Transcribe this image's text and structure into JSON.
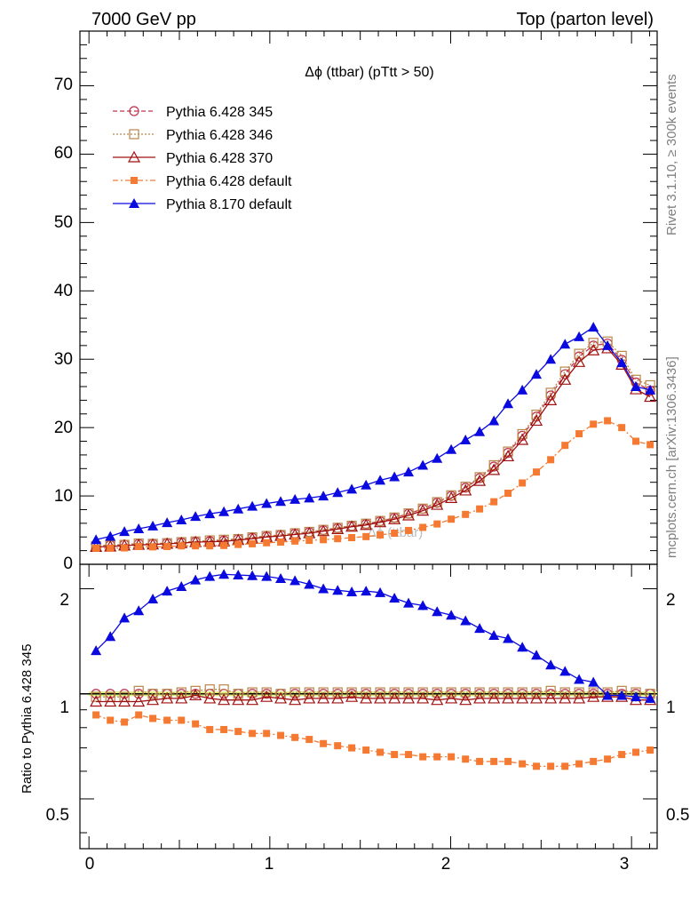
{
  "header": {
    "left": "7000 GeV pp",
    "right": "Top (parton level)"
  },
  "side_labels": {
    "rivet": "Rivet 3.1.10, ≥ 300k events",
    "mcplots": "mcplots.cern.ch [arXiv:1306.3436]"
  },
  "main_plot": {
    "title": "Δϕ (ttbar) (pTtt > 50)",
    "yticks": [
      "0",
      "10",
      "20",
      "30",
      "40",
      "50",
      "60",
      "70"
    ],
    "watermark": "Δϕ (ttbar)"
  },
  "ratio_plot": {
    "ylabel": "Ratio to Pythia 6.428 345",
    "yticks_left": [
      "0.5",
      "1",
      "2"
    ],
    "yticks_right": [
      "0.5",
      "1",
      "2"
    ]
  },
  "xticks": [
    "0",
    "1",
    "2",
    "3"
  ],
  "chart_data": {
    "type": "line",
    "title": "Δϕ (ttbar) (pTtt > 50)",
    "xlabel": "",
    "ylabel": "",
    "xlim": [
      -0.05,
      3.1416
    ],
    "ylim": [
      0,
      78
    ],
    "ratio_ylim": [
      0.36,
      2.35
    ],
    "legend_position": "top-left",
    "x": [
      0.039,
      0.118,
      0.196,
      0.275,
      0.353,
      0.432,
      0.511,
      0.589,
      0.668,
      0.746,
      0.825,
      0.903,
      0.982,
      1.06,
      1.139,
      1.218,
      1.296,
      1.375,
      1.453,
      1.532,
      1.61,
      1.689,
      1.767,
      1.846,
      1.925,
      2.003,
      2.082,
      2.16,
      2.239,
      2.317,
      2.396,
      2.474,
      2.553,
      2.632,
      2.71,
      2.789,
      2.867,
      2.946,
      3.024,
      3.103
    ],
    "series": [
      {
        "name": "Pythia 6.428 345",
        "color": "#c0304a",
        "marker": "open-circle",
        "dash": "5,3",
        "values": [
          2.7,
          2.8,
          2.9,
          3.0,
          3.0,
          3.1,
          3.2,
          3.3,
          3.4,
          3.5,
          3.7,
          3.9,
          4.1,
          4.3,
          4.5,
          4.7,
          5.0,
          5.3,
          5.6,
          5.9,
          6.3,
          6.8,
          7.4,
          8.1,
          9.0,
          10.0,
          11.2,
          12.6,
          14.3,
          16.3,
          18.8,
          21.6,
          24.7,
          27.8,
          30.4,
          32.0,
          32.3,
          29.9,
          26.6,
          25.4
        ]
      },
      {
        "name": "Pythia 6.428 346",
        "color": "#b8864b",
        "marker": "open-square",
        "dash": "2,2",
        "values": [
          2.65,
          2.75,
          2.85,
          3.05,
          3.0,
          3.1,
          3.25,
          3.35,
          3.5,
          3.6,
          3.7,
          3.95,
          4.15,
          4.3,
          4.55,
          4.75,
          5.05,
          5.35,
          5.65,
          5.95,
          6.35,
          6.85,
          7.45,
          8.15,
          9.1,
          10.1,
          11.35,
          12.75,
          14.5,
          16.5,
          19.05,
          21.9,
          25.1,
          28.2,
          30.8,
          32.4,
          32.6,
          30.5,
          27.0,
          26.2
        ]
      },
      {
        "name": "Pythia 6.428 370",
        "color": "#a01010",
        "marker": "open-triangle",
        "dash": "",
        "values": [
          2.55,
          2.6,
          2.75,
          2.85,
          2.9,
          3.0,
          3.1,
          3.25,
          3.3,
          3.35,
          3.55,
          3.75,
          4.0,
          4.15,
          4.35,
          4.55,
          4.85,
          5.15,
          5.5,
          5.75,
          6.15,
          6.6,
          7.15,
          7.85,
          8.7,
          9.7,
          10.8,
          12.2,
          13.8,
          15.8,
          18.2,
          21.0,
          24.0,
          27.0,
          29.6,
          31.3,
          31.6,
          29.2,
          25.6,
          24.5
        ]
      },
      {
        "name": "Pythia 6.428 default",
        "color": "#f47a33",
        "marker": "filled-square",
        "dash": "6,3,2,3",
        "values": [
          2.35,
          2.35,
          2.4,
          2.6,
          2.55,
          2.6,
          2.7,
          2.7,
          2.7,
          2.75,
          2.9,
          3.0,
          3.15,
          3.25,
          3.4,
          3.5,
          3.6,
          3.75,
          3.9,
          4.05,
          4.3,
          4.55,
          4.95,
          5.4,
          5.9,
          6.6,
          7.3,
          8.1,
          9.15,
          10.4,
          11.9,
          13.5,
          15.3,
          17.4,
          19.1,
          20.5,
          21.0,
          20.0,
          18.0,
          17.5
        ]
      },
      {
        "name": "Pythia 8.170 default",
        "color": "#0a0ae0",
        "marker": "filled-triangle",
        "dash": "",
        "values": [
          3.6,
          4.1,
          4.8,
          5.2,
          5.6,
          6.1,
          6.5,
          7.0,
          7.4,
          7.7,
          8.1,
          8.5,
          8.9,
          9.2,
          9.5,
          9.7,
          10.0,
          10.5,
          11.0,
          11.6,
          12.3,
          12.8,
          13.5,
          14.5,
          15.5,
          16.8,
          18.2,
          19.4,
          21.0,
          23.5,
          25.5,
          27.8,
          30.0,
          32.2,
          33.3,
          34.7,
          32.0,
          29.5,
          26.0,
          25.5
        ]
      }
    ],
    "ratio_series": [
      {
        "name": "Pythia 6.428 346",
        "values": [
          0.98,
          0.98,
          0.98,
          1.02,
          1.0,
          1.0,
          1.01,
          1.02,
          1.03,
          1.03,
          1.0,
          1.01,
          1.01,
          1.0,
          1.01,
          1.01,
          1.01,
          1.01,
          1.01,
          1.01,
          1.01,
          1.01,
          1.01,
          1.01,
          1.01,
          1.01,
          1.01,
          1.01,
          1.01,
          1.01,
          1.01,
          1.01,
          1.02,
          1.01,
          1.01,
          1.01,
          1.01,
          1.02,
          1.01,
          1.0
        ]
      },
      {
        "name": "Pythia 6.428 370",
        "values": [
          0.95,
          0.95,
          0.95,
          0.95,
          0.96,
          0.97,
          0.97,
          0.99,
          0.97,
          0.96,
          0.96,
          0.96,
          0.98,
          0.97,
          0.96,
          0.97,
          0.97,
          0.97,
          0.98,
          0.97,
          0.97,
          0.97,
          0.97,
          0.97,
          0.96,
          0.97,
          0.96,
          0.97,
          0.97,
          0.97,
          0.97,
          0.97,
          0.97,
          0.97,
          0.97,
          0.98,
          0.98,
          0.98,
          0.96,
          0.96
        ]
      },
      {
        "name": "Pythia 6.428 default",
        "values": [
          0.87,
          0.84,
          0.83,
          0.87,
          0.85,
          0.84,
          0.84,
          0.82,
          0.79,
          0.79,
          0.78,
          0.77,
          0.77,
          0.76,
          0.75,
          0.74,
          0.72,
          0.71,
          0.7,
          0.69,
          0.68,
          0.67,
          0.67,
          0.66,
          0.66,
          0.66,
          0.65,
          0.64,
          0.64,
          0.64,
          0.63,
          0.62,
          0.62,
          0.62,
          0.63,
          0.64,
          0.65,
          0.67,
          0.68,
          0.69
        ]
      },
      {
        "name": "Pythia 8.170 default",
        "values": [
          1.33,
          1.46,
          1.65,
          1.73,
          1.87,
          1.97,
          2.03,
          2.12,
          2.17,
          2.2,
          2.19,
          2.18,
          2.17,
          2.14,
          2.11,
          2.06,
          2.0,
          1.98,
          1.96,
          1.97,
          1.95,
          1.88,
          1.82,
          1.79,
          1.72,
          1.68,
          1.62,
          1.54,
          1.47,
          1.44,
          1.36,
          1.29,
          1.21,
          1.16,
          1.1,
          1.08,
          0.99,
          0.99,
          0.98,
          0.97
        ]
      }
    ]
  }
}
